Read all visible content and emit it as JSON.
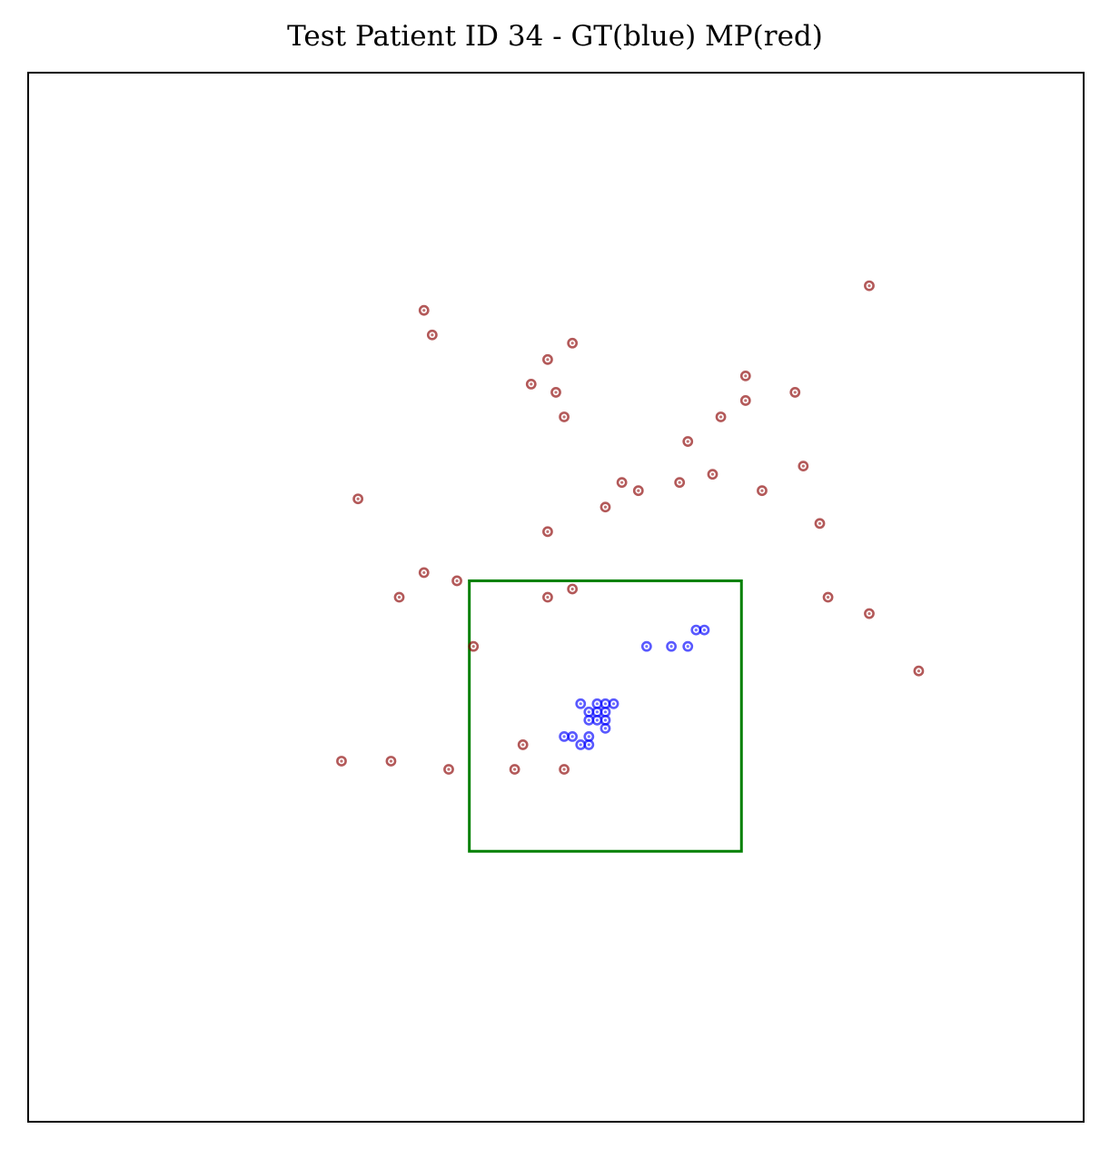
{
  "chart_data": {
    "type": "scatter",
    "title": "Test Patient ID 34 - GT(blue) MP(red)",
    "xlabel": "",
    "ylabel": "",
    "xlim": [
      0,
      128
    ],
    "ylim": [
      128,
      0
    ],
    "grid": false,
    "ticks_visible": false,
    "series": [
      {
        "color": "#8b0000",
        "marker": "hollow-circle",
        "points": [
          {
            "x": 102.0,
            "y": 26.0
          },
          {
            "x": 48.0,
            "y": 29.0
          },
          {
            "x": 49.0,
            "y": 32.0
          },
          {
            "x": 66.0,
            "y": 33.0
          },
          {
            "x": 63.0,
            "y": 35.0
          },
          {
            "x": 87.0,
            "y": 37.0
          },
          {
            "x": 61.0,
            "y": 38.0
          },
          {
            "x": 64.0,
            "y": 39.0
          },
          {
            "x": 93.0,
            "y": 39.0
          },
          {
            "x": 87.0,
            "y": 40.0
          },
          {
            "x": 65.0,
            "y": 42.0
          },
          {
            "x": 84.0,
            "y": 42.0
          },
          {
            "x": 80.0,
            "y": 45.0
          },
          {
            "x": 94.0,
            "y": 48.0
          },
          {
            "x": 83.0,
            "y": 49.0
          },
          {
            "x": 72.0,
            "y": 50.0
          },
          {
            "x": 79.0,
            "y": 50.0
          },
          {
            "x": 74.0,
            "y": 51.0
          },
          {
            "x": 89.0,
            "y": 51.0
          },
          {
            "x": 40.0,
            "y": 52.0
          },
          {
            "x": 70.0,
            "y": 53.0
          },
          {
            "x": 96.0,
            "y": 55.0
          },
          {
            "x": 63.0,
            "y": 56.0
          },
          {
            "x": 48.0,
            "y": 61.0
          },
          {
            "x": 52.0,
            "y": 62.0
          },
          {
            "x": 66.0,
            "y": 63.0
          },
          {
            "x": 45.0,
            "y": 64.0
          },
          {
            "x": 63.0,
            "y": 64.0
          },
          {
            "x": 97.0,
            "y": 64.0
          },
          {
            "x": 102.0,
            "y": 66.0
          },
          {
            "x": 54.0,
            "y": 70.0
          },
          {
            "x": 108.0,
            "y": 73.0
          },
          {
            "x": 60.0,
            "y": 82.0
          },
          {
            "x": 38.0,
            "y": 84.0
          },
          {
            "x": 44.0,
            "y": 84.0
          },
          {
            "x": 51.0,
            "y": 85.0
          },
          {
            "x": 59.0,
            "y": 85.0
          },
          {
            "x": 65.0,
            "y": 85.0
          }
        ]
      },
      {
        "color": "#0000ff",
        "marker": "hollow-circle",
        "points": [
          {
            "x": 81.0,
            "y": 68.0
          },
          {
            "x": 82.0,
            "y": 68.0
          },
          {
            "x": 75.0,
            "y": 70.0
          },
          {
            "x": 78.0,
            "y": 70.0
          },
          {
            "x": 80.0,
            "y": 70.0
          },
          {
            "x": 67.0,
            "y": 77.0
          },
          {
            "x": 69.0,
            "y": 77.0
          },
          {
            "x": 70.0,
            "y": 77.0
          },
          {
            "x": 71.0,
            "y": 77.0
          },
          {
            "x": 68.0,
            "y": 78.0
          },
          {
            "x": 69.0,
            "y": 78.0
          },
          {
            "x": 70.0,
            "y": 78.0
          },
          {
            "x": 68.0,
            "y": 79.0
          },
          {
            "x": 69.0,
            "y": 79.0
          },
          {
            "x": 70.0,
            "y": 79.0
          },
          {
            "x": 70.0,
            "y": 80.0
          },
          {
            "x": 65.0,
            "y": 81.0
          },
          {
            "x": 66.0,
            "y": 81.0
          },
          {
            "x": 68.0,
            "y": 81.0
          },
          {
            "x": 67.0,
            "y": 82.0
          },
          {
            "x": 68.0,
            "y": 82.0
          }
        ]
      }
    ],
    "box": {
      "color": "#008000",
      "x": [
        53.5,
        86.5
      ],
      "y": [
        62.0,
        95.0
      ]
    }
  }
}
